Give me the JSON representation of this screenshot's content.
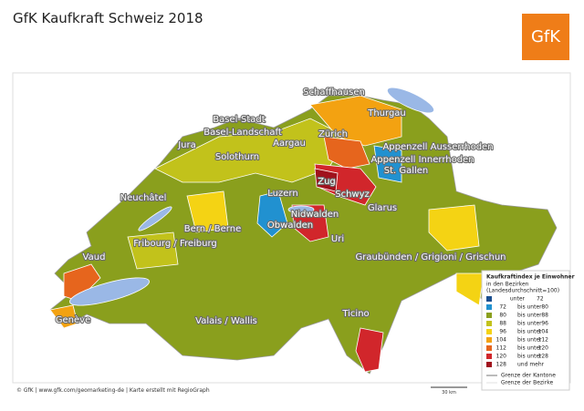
{
  "header": {
    "title": "GfK Kaufkraft Schweiz 2018",
    "logo": "GfK"
  },
  "map": {
    "regions": [
      "Schaffhausen",
      "Thurgau",
      "Basel-Stadt",
      "Basel-Landschaft",
      "Zürich",
      "Jura",
      "Aargau",
      "Appenzell Ausserrhoden",
      "Appenzell Innerrhoden",
      "Solothurn",
      "St. Gallen",
      "Zug",
      "Neuchâtel",
      "Luzern",
      "Schwyz",
      "Nidwalden",
      "Obwalden",
      "Glarus",
      "Bern / Berne",
      "Uri",
      "Fribourg / Freiburg",
      "Vaud",
      "Graubünden / Grigioni / Grischun",
      "Ticino",
      "Genève",
      "Valais / Wallis"
    ],
    "scale": "30 km"
  },
  "legend": {
    "title": "Kaufkraftindex je Einwohner",
    "subtitle": "in den Bezirken",
    "note": "(Landesdurchschnitt=100)",
    "classes": [
      {
        "color": "#1b4f8f",
        "text": [
          "unter",
          72
        ]
      },
      {
        "color": "#2191d0",
        "text": [
          72,
          "bis unter",
          80
        ]
      },
      {
        "color": "#8a9f1d",
        "text": [
          80,
          "bis unter",
          88
        ]
      },
      {
        "color": "#c2c21b",
        "text": [
          88,
          "bis unter",
          96
        ]
      },
      {
        "color": "#f4d314",
        "text": [
          96,
          "bis unter",
          104
        ]
      },
      {
        "color": "#f3a211",
        "text": [
          104,
          "bis unter",
          112
        ]
      },
      {
        "color": "#e6651d",
        "text": [
          112,
          "bis unter",
          120
        ]
      },
      {
        "color": "#d1262b",
        "text": [
          120,
          "bis unter",
          128
        ]
      },
      {
        "color": "#a0121d",
        "text": [
          128,
          "und mehr"
        ]
      }
    ],
    "lines": [
      "Grenze der Kantone",
      "Grenze der Bezirke"
    ]
  },
  "footer": "© GfK | www.gfk.com/geomarketing-de | Karte erstellt mit RegioGraph"
}
